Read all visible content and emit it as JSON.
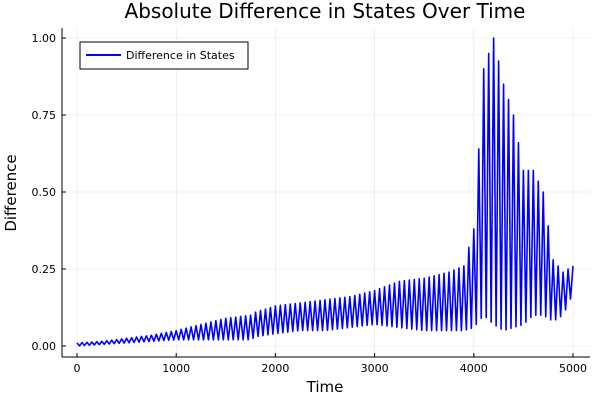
{
  "chart_data": {
    "type": "line",
    "title": "Absolute Difference in States Over Time",
    "xlabel": "Time",
    "ylabel": "Difference",
    "xlim": [
      0,
      5000
    ],
    "ylim": [
      0,
      1.0
    ],
    "xticks": [
      0,
      1000,
      2000,
      3000,
      4000,
      5000
    ],
    "yticks": [
      0.0,
      0.25,
      0.5,
      0.75,
      1.0
    ],
    "xtick_labels": [
      "0",
      "1000",
      "2000",
      "3000",
      "4000",
      "5000"
    ],
    "ytick_labels": [
      "0.00",
      "0.25",
      "0.50",
      "0.75",
      "1.00"
    ],
    "grid": true,
    "legend_position": "top-left",
    "series": [
      {
        "name": "Difference in States",
        "color": "#0000ff",
        "note_envelope": "oscillating signal; values below are the upper and lower envelope in data units",
        "x": [
          0,
          250,
          500,
          750,
          1000,
          1250,
          1500,
          1750,
          1800,
          2000,
          2250,
          2500,
          2750,
          3000,
          3250,
          3500,
          3750,
          3900,
          4000,
          4100,
          4200,
          4300,
          4400,
          4500,
          4600,
          4700,
          4800,
          4900,
          5000
        ],
        "upper": [
          0.01,
          0.015,
          0.025,
          0.035,
          0.05,
          0.07,
          0.09,
          0.1,
          0.11,
          0.13,
          0.14,
          0.15,
          0.16,
          0.18,
          0.21,
          0.22,
          0.24,
          0.26,
          0.38,
          0.9,
          1.0,
          0.85,
          0.75,
          0.57,
          0.57,
          0.5,
          0.28,
          0.24,
          0.26
        ],
        "lower": [
          0.0,
          0.005,
          0.01,
          0.015,
          0.02,
          0.02,
          0.02,
          0.02,
          0.03,
          0.04,
          0.05,
          0.05,
          0.06,
          0.07,
          0.06,
          0.05,
          0.05,
          0.05,
          0.06,
          0.1,
          0.07,
          0.05,
          0.06,
          0.07,
          0.1,
          0.1,
          0.08,
          0.1,
          0.17
        ]
      }
    ]
  }
}
